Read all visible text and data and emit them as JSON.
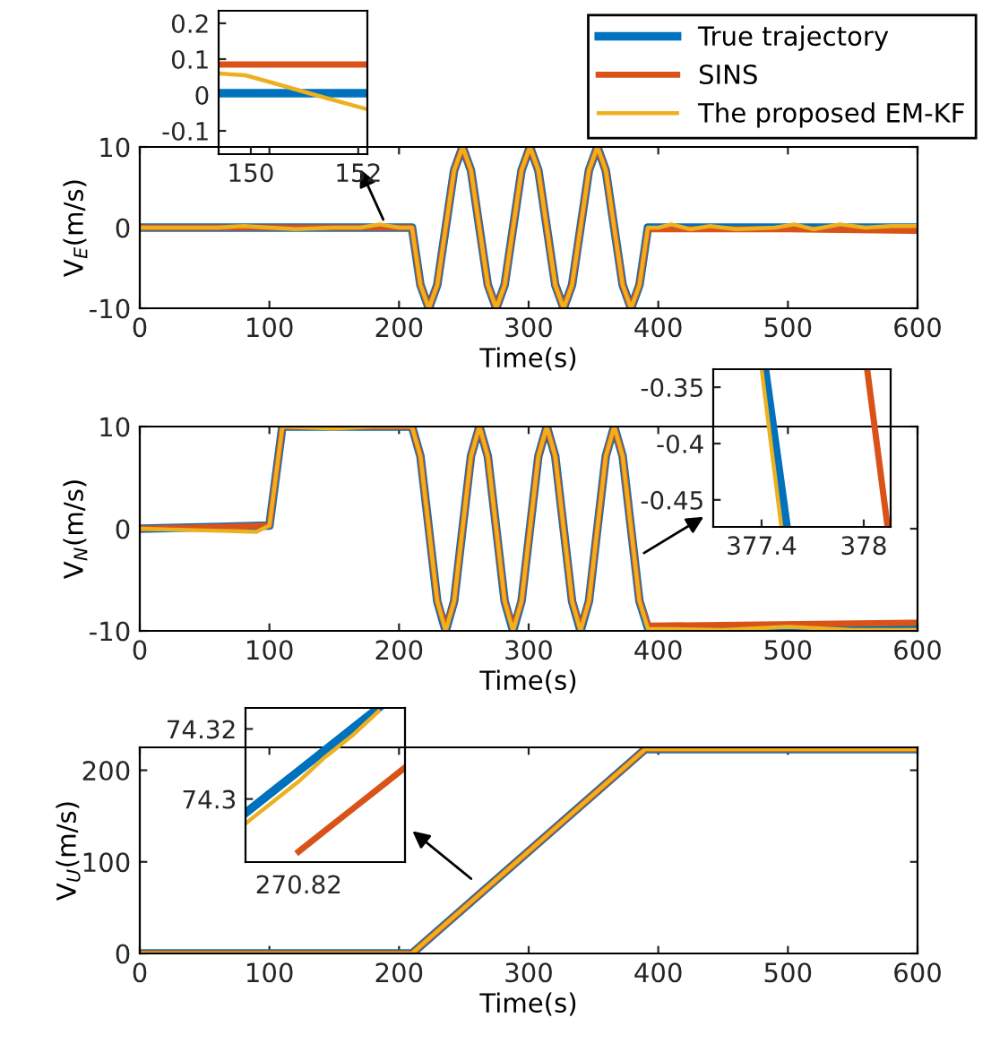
{
  "chart_data": [
    {
      "type": "line",
      "xlabel": "Time(s)",
      "ylabel": "V$_{E}$(m/s)",
      "xlim": [
        0,
        600
      ],
      "ylim": [
        -10,
        10
      ],
      "xticks": [
        0,
        100,
        200,
        300,
        400,
        500,
        600
      ],
      "yticks": [
        -10,
        0,
        10
      ],
      "legend": "top right",
      "series": [
        {
          "name": "True trajectory",
          "color": "#0072bd",
          "x": [
            0,
            210,
            216.5,
            223,
            229.5,
            236,
            242.5,
            249,
            255.5,
            262,
            268.5,
            275,
            281.5,
            288,
            294.5,
            301,
            307.5,
            314,
            320.5,
            327,
            333.5,
            340,
            346.5,
            353,
            359.5,
            366,
            372.5,
            379,
            385.5,
            392,
            600
          ],
          "values": [
            0,
            0,
            -7.1,
            -10,
            -7.1,
            0,
            7.1,
            10,
            7.1,
            0,
            -7.1,
            -10,
            -7.1,
            0,
            7.1,
            10,
            7.1,
            0,
            -7.1,
            -10,
            -7.1,
            0,
            7.1,
            10,
            7.1,
            0,
            -7.1,
            -10,
            -7.1,
            0,
            0
          ]
        },
        {
          "name": "SINS",
          "color": "#d95319",
          "x": [
            0,
            210,
            216.5,
            223,
            229.5,
            236,
            242.5,
            249,
            255.5,
            262,
            268.5,
            275,
            281.5,
            288,
            294.5,
            301,
            307.5,
            314,
            320.5,
            327,
            333.5,
            340,
            346.5,
            353,
            359.5,
            366,
            372.5,
            379,
            385.5,
            392,
            500,
            600
          ],
          "values": [
            0,
            0,
            -7.1,
            -10,
            -7.1,
            0,
            7.1,
            10,
            7.1,
            0,
            -7.1,
            -10,
            -7.1,
            0,
            7.1,
            10,
            7.1,
            0,
            -7.1,
            -10,
            -7.1,
            0,
            7.1,
            10,
            7.1,
            0,
            -7.1,
            -10,
            -7.1,
            -0.2,
            -0.2,
            -0.4
          ]
        },
        {
          "name": "The proposed EM-KF",
          "color": "#edb120",
          "x": [
            0,
            30,
            60,
            80,
            100,
            120,
            150,
            170,
            185,
            200,
            210,
            216.5,
            223,
            229.5,
            236,
            242.5,
            249,
            255.5,
            262,
            268.5,
            275,
            281.5,
            288,
            294.5,
            301,
            307.5,
            314,
            320.5,
            327,
            333.5,
            340,
            346.5,
            353,
            359.5,
            366,
            372.5,
            379,
            385.5,
            392,
            400,
            410,
            425,
            440,
            460,
            490,
            505,
            520,
            540,
            560,
            580,
            600
          ],
          "values": [
            0,
            0,
            0,
            0.2,
            0,
            -0.2,
            0,
            0,
            0.4,
            0,
            0,
            -7.1,
            -10,
            -7.1,
            0,
            7.1,
            10,
            7.1,
            0,
            -7.1,
            -10,
            -7.1,
            0,
            7.1,
            10,
            7.1,
            0,
            -7.1,
            -10,
            -7.1,
            0,
            7.1,
            10,
            7.1,
            0,
            -7.1,
            -10,
            -7.1,
            0,
            0,
            0.4,
            -0.2,
            0.2,
            -0.2,
            0,
            0.4,
            -0.2,
            0.4,
            0,
            0.2,
            0.2
          ]
        }
      ]
    },
    {
      "type": "line",
      "xlim": [
        149.4,
        152.17
      ],
      "ylim": [
        -0.165,
        0.235
      ],
      "xticks": [
        150,
        152
      ],
      "yticks": [
        -0.1,
        0,
        0.1,
        0.2
      ],
      "series": [
        {
          "color": "#0072bd",
          "x": [
            149.4,
            152.17
          ],
          "values": [
            0.005,
            0.005
          ]
        },
        {
          "color": "#d95319",
          "x": [
            149.4,
            152.17
          ],
          "values": [
            0.085,
            0.085
          ]
        },
        {
          "color": "#edb120",
          "x": [
            149.4,
            149.9,
            150.5,
            151.2,
            152.17
          ],
          "values": [
            0.06,
            0.055,
            0.03,
            0.0,
            -0.04
          ]
        }
      ]
    },
    {
      "type": "line",
      "xlabel": "Time(s)",
      "ylabel": "V$_{N}$(m/s)",
      "xlim": [
        0,
        600
      ],
      "ylim": [
        -10,
        10
      ],
      "xticks": [
        0,
        100,
        200,
        300,
        400,
        500,
        600
      ],
      "yticks": [
        -10,
        0,
        10
      ],
      "series": [
        {
          "color": "#0072bd",
          "x": [
            0,
            100,
            110,
            210,
            216.5,
            223,
            229.5,
            236,
            242.5,
            249,
            255.5,
            262,
            268.5,
            275,
            281.5,
            288,
            294.5,
            301,
            307.5,
            314,
            320.5,
            327,
            333.5,
            340,
            346.5,
            353,
            359.5,
            366,
            372.5,
            379,
            385.5,
            392,
            600
          ],
          "values": [
            0,
            0.3,
            10,
            10,
            7.1,
            0,
            -7.1,
            -10,
            -7.1,
            0,
            7.1,
            10,
            7.1,
            0,
            -7.1,
            -10,
            -7.1,
            0,
            7.1,
            10,
            7.1,
            0,
            -7.1,
            -10,
            -7.1,
            0,
            7.1,
            10,
            7.1,
            0,
            -7.1,
            -9.7,
            -9.7
          ]
        },
        {
          "color": "#d95319",
          "x": [
            0,
            100,
            110,
            210,
            216.5,
            223,
            229.5,
            236,
            242.5,
            249,
            255.5,
            262,
            268.5,
            275,
            281.5,
            288,
            294.5,
            301,
            307.5,
            314,
            320.5,
            327,
            333.5,
            340,
            346.5,
            353,
            359.5,
            366,
            372.5,
            379,
            385.5,
            392,
            600
          ],
          "values": [
            0,
            0.3,
            10,
            10,
            7.1,
            0,
            -7.1,
            -9.8,
            -7.1,
            0,
            7.1,
            10,
            7.1,
            0,
            -7.1,
            -9.8,
            -7.1,
            0,
            7.1,
            10,
            7.1,
            0,
            -7.1,
            -9.8,
            -7.1,
            0,
            7.1,
            10,
            7.1,
            0,
            -7.1,
            -9.5,
            -9.2
          ]
        },
        {
          "color": "#edb120",
          "x": [
            0,
            90,
            100,
            110,
            150,
            180,
            210,
            216.5,
            223,
            229.5,
            236,
            242.5,
            249,
            255.5,
            262,
            268.5,
            275,
            281.5,
            288,
            294.5,
            301,
            307.5,
            314,
            320.5,
            327,
            333.5,
            340,
            346.5,
            353,
            359.5,
            366,
            372.5,
            379,
            385.5,
            392,
            450,
            500,
            550,
            600
          ],
          "values": [
            0,
            -0.3,
            0.3,
            10,
            9.8,
            10,
            10,
            7.1,
            0,
            -7.1,
            -10,
            -7.1,
            0,
            7.1,
            10,
            7.1,
            0,
            -7.1,
            -10,
            -7.1,
            0,
            7.1,
            10,
            7.1,
            0,
            -7.1,
            -10,
            -7.1,
            0,
            7.1,
            10,
            7.1,
            0,
            -7.1,
            -9.8,
            -9.9,
            -9.6,
            -9.9,
            -9.9
          ]
        }
      ]
    },
    {
      "type": "line",
      "xlim": [
        377.116,
        378.158
      ],
      "ylim": [
        -0.474,
        -0.334
      ],
      "xticks": [
        377.4,
        378
      ],
      "yticks": [
        -0.45,
        -0.4,
        -0.35
      ],
      "series": [
        {
          "color": "#0072bd",
          "x": [
            377.42,
            377.547
          ],
          "values": [
            -0.334,
            -0.474
          ]
        },
        {
          "color": "#d95319",
          "x": [
            378.02,
            378.14
          ],
          "values": [
            -0.334,
            -0.474
          ]
        },
        {
          "color": "#edb120",
          "x": [
            377.4,
            377.516
          ],
          "values": [
            -0.334,
            -0.474
          ]
        }
      ]
    },
    {
      "type": "line",
      "xlabel": "Time(s)",
      "ylabel": "V$_{U}$(m/s)",
      "xlim": [
        0,
        600
      ],
      "ylim": [
        0,
        225
      ],
      "xticks": [
        0,
        100,
        200,
        300,
        400,
        500,
        600
      ],
      "yticks": [
        0,
        100,
        200
      ],
      "series": [
        {
          "color": "#0072bd",
          "x": [
            0,
            210,
            390,
            600
          ],
          "values": [
            0,
            0,
            223,
            223
          ]
        },
        {
          "color": "#d95319",
          "x": [
            0,
            210,
            390,
            600
          ],
          "values": [
            0,
            0,
            223,
            223
          ]
        },
        {
          "color": "#edb120",
          "x": [
            0,
            210,
            390,
            600
          ],
          "values": [
            0,
            0,
            223,
            223
          ]
        }
      ]
    },
    {
      "type": "line",
      "categories": [
        null,
        null,
        "270.82",
        null,
        null,
        null,
        null
      ],
      "ylim": [
        74.282,
        74.326
      ],
      "yticks": [
        74.3,
        74.32
      ],
      "series": [
        {
          "color": "#0072bd",
          "values": [
            74.296,
            74.302,
            74.308,
            74.314,
            74.32,
            74.326,
            null
          ]
        },
        {
          "color": "#d95319",
          "values": [
            null,
            null,
            74.285,
            74.291,
            74.297,
            74.303,
            74.309
          ]
        },
        {
          "color": "#edb120",
          "values": [
            74.293,
            74.299,
            74.305,
            74.312,
            74.318,
            74.325,
            null
          ]
        }
      ]
    }
  ]
}
